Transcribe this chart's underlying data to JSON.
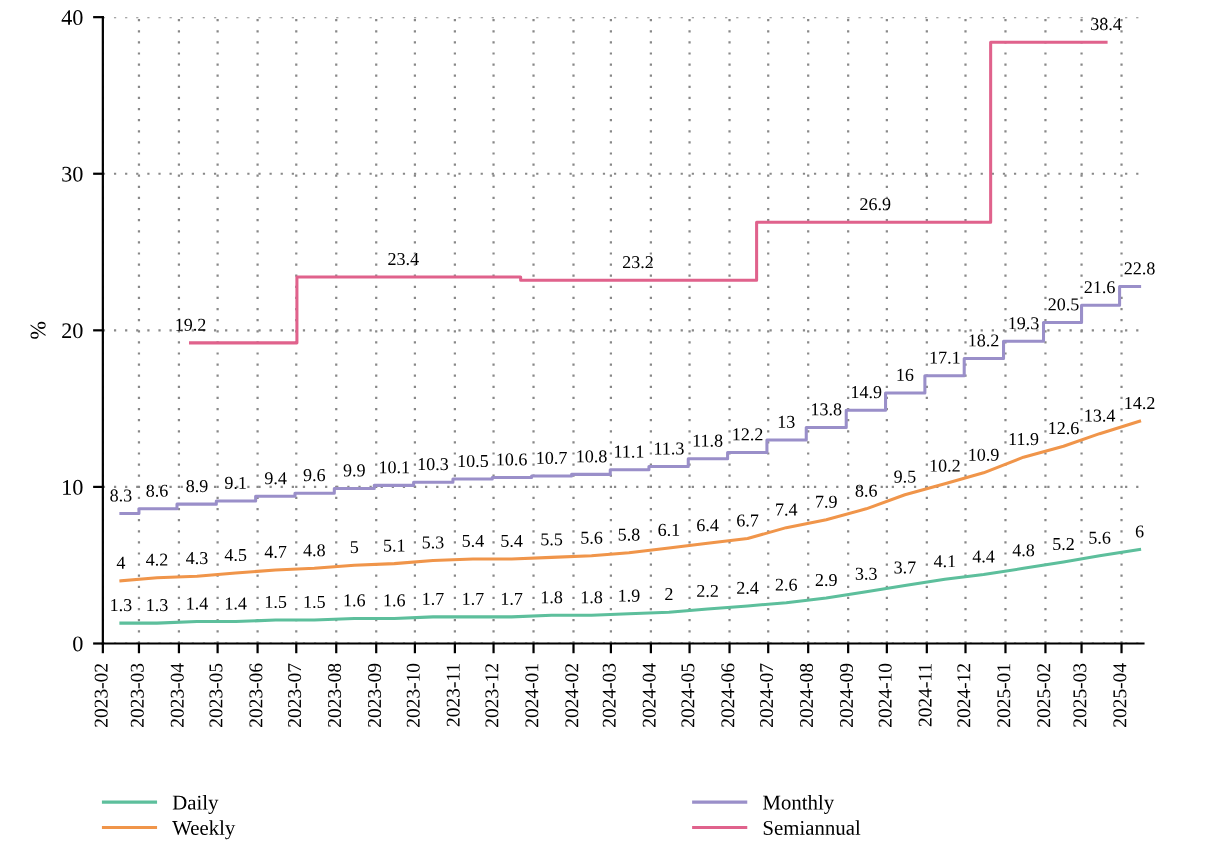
{
  "chart_data": {
    "type": "line",
    "ylabel": "%",
    "xlim": [
      "2023-02",
      "2025-04-18"
    ],
    "ylim": [
      0,
      40
    ],
    "yticks": [
      0,
      10,
      20,
      30,
      40
    ],
    "xticks": [
      "2023-02",
      "2023-03",
      "2023-04",
      "2023-05",
      "2023-06",
      "2023-07",
      "2023-08",
      "2023-09",
      "2023-10",
      "2023-11",
      "2023-12",
      "2024-01",
      "2024-02",
      "2024-03",
      "2024-04",
      "2024-05",
      "2024-06",
      "2024-07",
      "2024-08",
      "2024-09",
      "2024-10",
      "2024-11",
      "2024-12",
      "2025-01",
      "2025-02",
      "2025-03",
      "2025-04"
    ],
    "x": [
      "2023-02-15",
      "2023-03-15",
      "2023-04-15",
      "2023-05-15",
      "2023-06-15",
      "2023-07-15",
      "2023-08-15",
      "2023-09-15",
      "2023-10-15",
      "2023-11-15",
      "2023-12-15",
      "2024-01-15",
      "2024-02-15",
      "2024-03-15",
      "2024-04-15",
      "2024-05-15",
      "2024-06-15",
      "2024-07-15",
      "2024-08-15",
      "2024-09-15",
      "2024-10-15",
      "2024-11-15",
      "2024-12-15",
      "2025-01-15",
      "2025-02-15",
      "2025-03-15",
      "2025-04-15"
    ],
    "grid": true,
    "legend": "bottom",
    "data_labels": true,
    "series": [
      {
        "name": "Daily",
        "color": "#5dbf9c",
        "values": [
          1.3,
          1.3,
          1.4,
          1.4,
          1.5,
          1.5,
          1.6,
          1.6,
          1.7,
          1.7,
          1.7,
          1.8,
          1.8,
          1.9,
          2,
          2.2,
          2.4,
          2.6,
          2.9,
          3.3,
          3.7,
          4.1,
          4.4,
          4.8,
          5.2,
          5.6,
          6
        ]
      },
      {
        "name": "Weekly",
        "color": "#f0954a",
        "values": [
          4,
          4.2,
          4.3,
          4.5,
          4.7,
          4.8,
          5,
          5.1,
          5.3,
          5.4,
          5.4,
          5.5,
          5.6,
          5.8,
          6.1,
          6.4,
          6.7,
          7.4,
          7.9,
          8.6,
          9.5,
          10.2,
          10.9,
          11.9,
          12.6,
          13.4,
          14.2
        ]
      },
      {
        "name": "Monthly",
        "type": "step",
        "color": "#9a8fc9",
        "values": [
          8.3,
          8.6,
          8.9,
          9.1,
          9.4,
          9.6,
          9.9,
          10.1,
          10.3,
          10.5,
          10.6,
          10.7,
          10.8,
          11.1,
          11.3,
          11.8,
          12.2,
          13,
          13.8,
          14.9,
          16,
          17.1,
          18.2,
          19.3,
          20.5,
          21.6,
          22.8
        ]
      },
      {
        "name": "Semiannual",
        "type": "step",
        "color": "#e0628c",
        "x": [
          "2023-04-10",
          "2023-09-22",
          "2024-03-22",
          "2024-09-22",
          "2025-03-20"
        ],
        "values": [
          19.2,
          23.4,
          23.2,
          26.9,
          38.4
        ]
      }
    ]
  }
}
